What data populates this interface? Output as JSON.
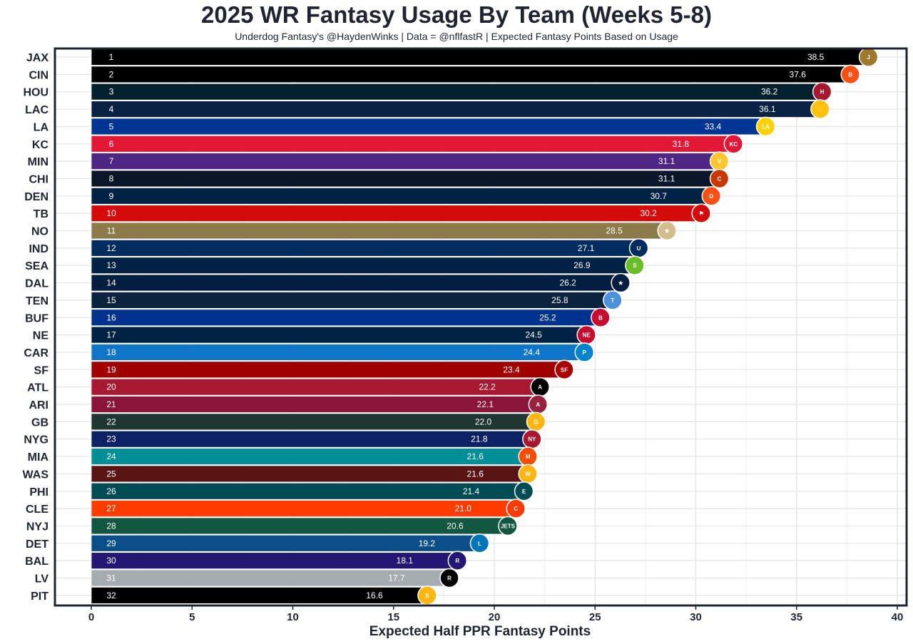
{
  "chart_data": {
    "type": "bar",
    "orientation": "horizontal",
    "title": "2025 WR Fantasy Usage By Team (Weeks 5-8)",
    "subtitle": "Underdog Fantasy's @HaydenWinks | Data = @nflfastR | Expected Fantasy Points Based on Usage",
    "xlabel": "Expected Half PPR Fantasy Points",
    "ylabel": "",
    "xlim": [
      0,
      40
    ],
    "xticks": [
      0,
      5,
      10,
      15,
      20,
      25,
      30,
      35,
      40
    ],
    "grid": true,
    "legend": "none",
    "bars": [
      {
        "team": "JAX",
        "rank": "1",
        "value": 38.5,
        "label": "38.5",
        "color": "#000000",
        "logo_color": "#9F792C"
      },
      {
        "team": "CIN",
        "rank": "2",
        "value": 37.6,
        "label": "37.6",
        "color": "#000000",
        "logo_color": "#FB4F14"
      },
      {
        "team": "HOU",
        "rank": "3",
        "value": 36.2,
        "label": "36.2",
        "color": "#03202F",
        "logo_color": "#A71930"
      },
      {
        "team": "LAC",
        "rank": "4",
        "value": 36.1,
        "label": "36.1",
        "color": "#0A2342",
        "logo_color": "#FFC20E"
      },
      {
        "team": "LA",
        "rank": "5",
        "value": 33.4,
        "label": "33.4",
        "color": "#003594",
        "logo_color": "#FFD100"
      },
      {
        "team": "KC",
        "rank": "6",
        "value": 31.8,
        "label": "31.8",
        "color": "#E31837",
        "logo_color": "#E31837"
      },
      {
        "team": "MIN",
        "rank": "7",
        "value": 31.1,
        "label": "31.1",
        "color": "#4F2683",
        "logo_color": "#FFC62F"
      },
      {
        "team": "CHI",
        "rank": "8",
        "value": 31.1,
        "label": "31.1",
        "color": "#0B162A",
        "logo_color": "#C83803"
      },
      {
        "team": "DEN",
        "rank": "9",
        "value": 30.7,
        "label": "30.7",
        "color": "#002244",
        "logo_color": "#FB4F14"
      },
      {
        "team": "TB",
        "rank": "10",
        "value": 30.2,
        "label": "30.2",
        "color": "#D50A0A",
        "logo_color": "#D50A0A"
      },
      {
        "team": "NO",
        "rank": "11",
        "value": 28.5,
        "label": "28.5",
        "color": "#8C7A4A",
        "logo_color": "#D3BC8D"
      },
      {
        "team": "IND",
        "rank": "12",
        "value": 27.1,
        "label": "27.1",
        "color": "#002C5F",
        "logo_color": "#002C5F"
      },
      {
        "team": "SEA",
        "rank": "13",
        "value": 26.9,
        "label": "26.9",
        "color": "#002244",
        "logo_color": "#69BE28"
      },
      {
        "team": "DAL",
        "rank": "14",
        "value": 26.2,
        "label": "26.2",
        "color": "#041E42",
        "logo_color": "#041E42"
      },
      {
        "team": "TEN",
        "rank": "15",
        "value": 25.8,
        "label": "25.8",
        "color": "#0C2340",
        "logo_color": "#4B92DB"
      },
      {
        "team": "BUF",
        "rank": "16",
        "value": 25.2,
        "label": "25.2",
        "color": "#00338D",
        "logo_color": "#C60C30"
      },
      {
        "team": "NE",
        "rank": "17",
        "value": 24.5,
        "label": "24.5",
        "color": "#002244",
        "logo_color": "#C60C30"
      },
      {
        "team": "CAR",
        "rank": "18",
        "value": 24.4,
        "label": "24.4",
        "color": "#0F75C9",
        "logo_color": "#0085CA"
      },
      {
        "team": "SF",
        "rank": "19",
        "value": 23.4,
        "label": "23.4",
        "color": "#A00000",
        "logo_color": "#AA0000"
      },
      {
        "team": "ATL",
        "rank": "20",
        "value": 22.2,
        "label": "22.2",
        "color": "#A71930",
        "logo_color": "#000000"
      },
      {
        "team": "ARI",
        "rank": "21",
        "value": 22.1,
        "label": "22.1",
        "color": "#8A1538",
        "logo_color": "#97233F"
      },
      {
        "team": "GB",
        "rank": "22",
        "value": 22.0,
        "label": "22.0",
        "color": "#203731",
        "logo_color": "#FFB612"
      },
      {
        "team": "NYG",
        "rank": "23",
        "value": 21.8,
        "label": "21.8",
        "color": "#0B2265",
        "logo_color": "#A71930"
      },
      {
        "team": "MIA",
        "rank": "24",
        "value": 21.6,
        "label": "21.6",
        "color": "#008E97",
        "logo_color": "#FC4C02"
      },
      {
        "team": "WAS",
        "rank": "25",
        "value": 21.6,
        "label": "21.6",
        "color": "#5A1414",
        "logo_color": "#FFB612"
      },
      {
        "team": "PHI",
        "rank": "26",
        "value": 21.4,
        "label": "21.4",
        "color": "#004C54",
        "logo_color": "#004C54"
      },
      {
        "team": "CLE",
        "rank": "27",
        "value": 21.0,
        "label": "21.0",
        "color": "#FF3C00",
        "logo_color": "#FF3C00"
      },
      {
        "team": "NYJ",
        "rank": "28",
        "value": 20.6,
        "label": "20.6",
        "color": "#125740",
        "logo_color": "#125740"
      },
      {
        "team": "DET",
        "rank": "29",
        "value": 19.2,
        "label": "19.2",
        "color": "#0B4F8A",
        "logo_color": "#0076B6"
      },
      {
        "team": "BAL",
        "rank": "30",
        "value": 18.1,
        "label": "18.1",
        "color": "#241773",
        "logo_color": "#241773"
      },
      {
        "team": "LV",
        "rank": "31",
        "value": 17.7,
        "label": "17.7",
        "color": "#A5ACAF",
        "logo_color": "#000000"
      },
      {
        "team": "PIT",
        "rank": "32",
        "value": 16.6,
        "label": "16.6",
        "color": "#000000",
        "logo_color": "#FFB612"
      }
    ]
  },
  "logo_badges": {
    "CIN": "B",
    "HOU": "H",
    "LAC": "⚡",
    "LA": "LA",
    "KC": "KC",
    "MIN": "V",
    "CHI": "C",
    "DEN": "D",
    "TB": "⚑",
    "NO": "⚜",
    "IND": "U",
    "SEA": "S",
    "DAL": "★",
    "TEN": "T",
    "BUF": "B",
    "NE": "NE",
    "CAR": "P",
    "SF": "SF",
    "ATL": "A",
    "ARI": "A",
    "GB": "G",
    "NYG": "NY",
    "MIA": "M",
    "WAS": "W",
    "PHI": "E",
    "CLE": "C",
    "NYJ": "JETS",
    "DET": "L",
    "BAL": "R",
    "LV": "R",
    "PIT": "S",
    "JAX": "J"
  }
}
